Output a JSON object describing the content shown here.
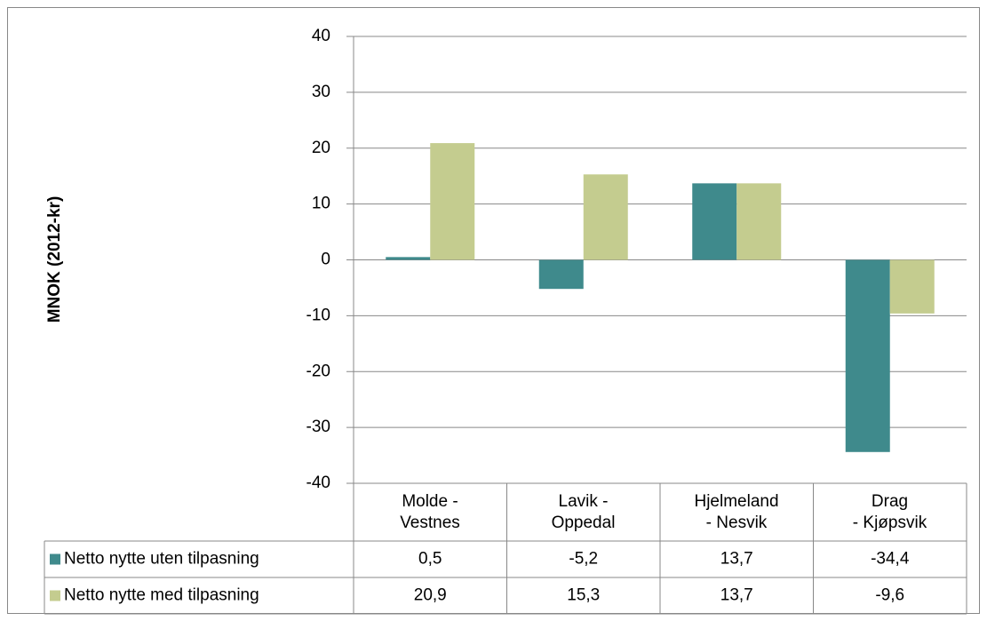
{
  "chart_data": {
    "type": "bar",
    "y_label": "MNOK (2012-kr)",
    "categories": [
      "Molde -\nVestnes",
      "Lavik -\nOppedal",
      "Hjelmeland\n- Nesvik",
      "Drag\n- Kjøpsvik"
    ],
    "series": [
      {
        "name": "Netto nytte uten tilpasning",
        "color": "#3f8a8c",
        "values": [
          0.5,
          -5.2,
          13.7,
          -34.4
        ],
        "value_labels": [
          "0,5",
          "-5,2",
          "13,7",
          "-34,4"
        ]
      },
      {
        "name": "Netto nytte med tilpasning",
        "color": "#c4cc8f",
        "values": [
          20.9,
          15.3,
          13.7,
          -9.6
        ],
        "value_labels": [
          "20,9",
          "15,3",
          "13,7",
          "-9,6"
        ]
      }
    ],
    "ylim": [
      -40,
      40
    ],
    "yticks": [
      -40,
      -30,
      -20,
      -10,
      0,
      10,
      20,
      30,
      40
    ],
    "grid": true
  }
}
